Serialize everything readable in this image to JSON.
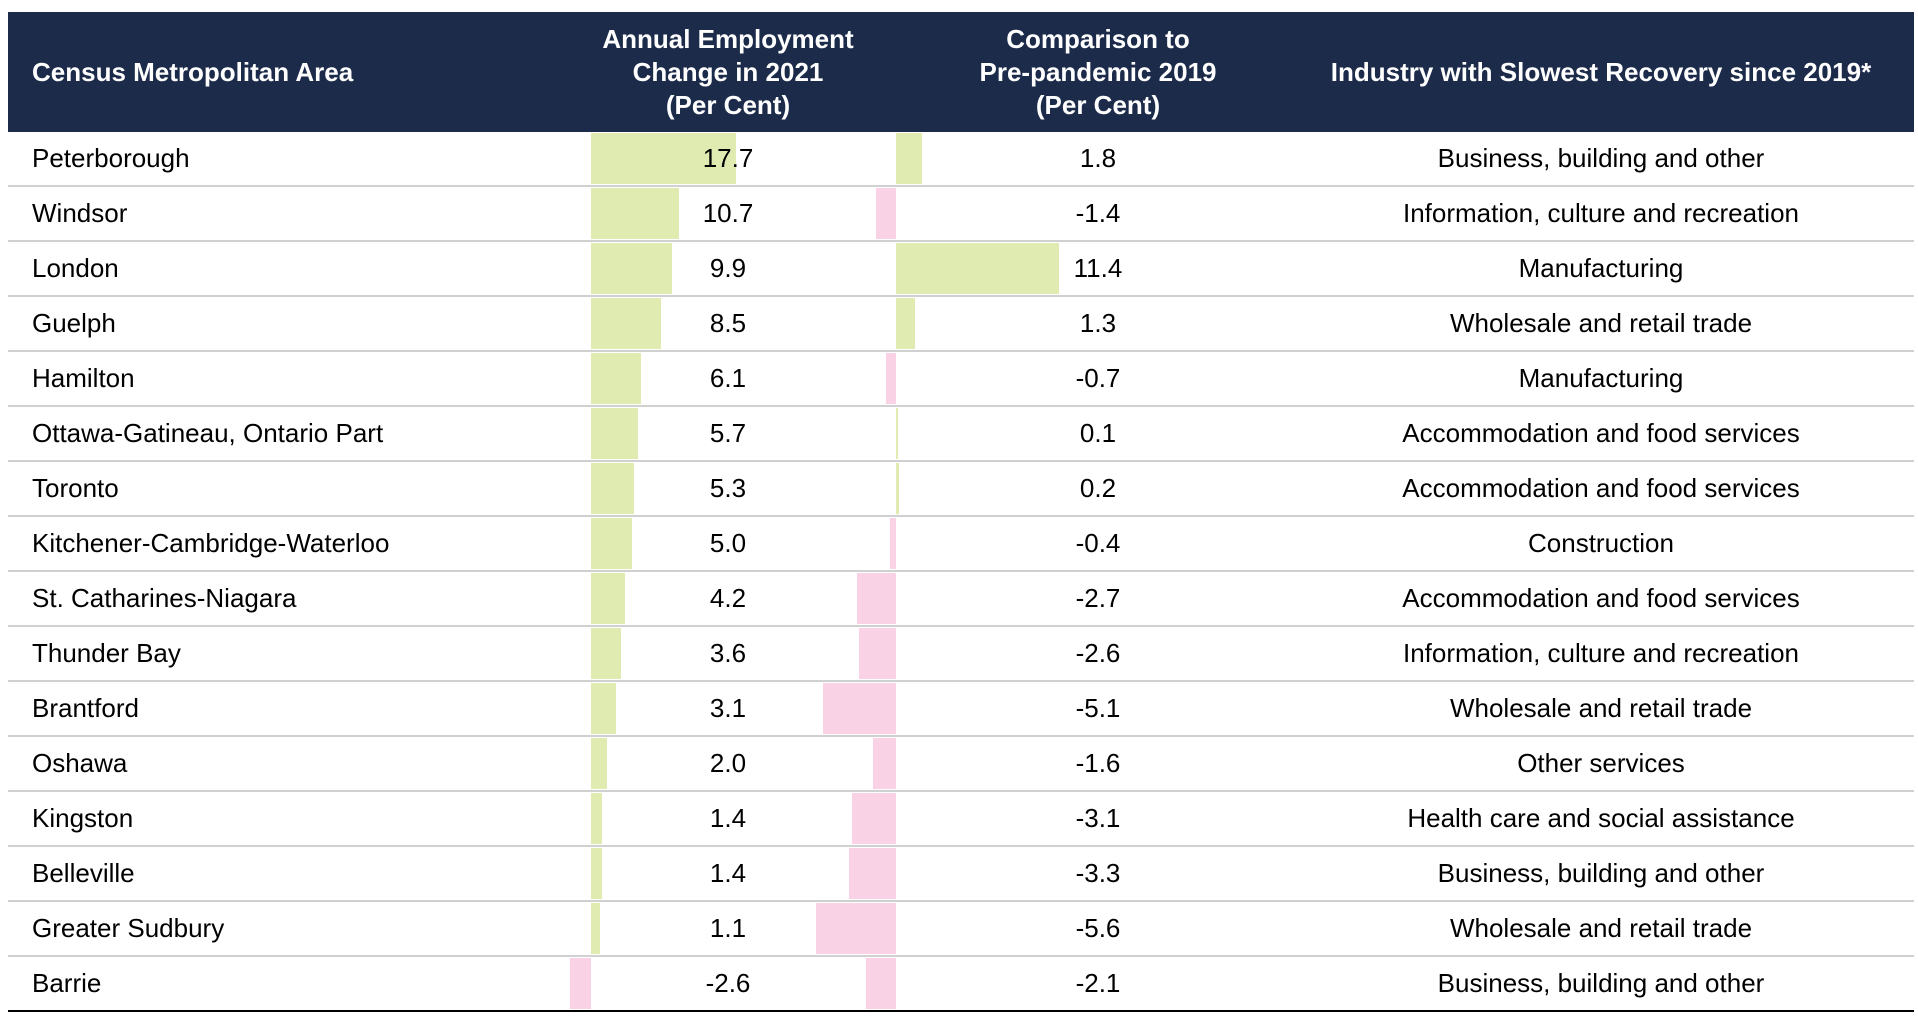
{
  "colors": {
    "header_bg": "#1c2b4a",
    "positive_bar": "#dfebb0",
    "negative_bar": "#f9d3e5"
  },
  "headers": {
    "area": "Census Metropolitan Area",
    "annual": [
      "Annual Employment",
      "Change in 2021",
      "(Per Cent)"
    ],
    "comparison": [
      "Comparison to",
      "Pre-pandemic 2019",
      "(Per Cent)"
    ],
    "industry": "Industry with Slowest Recovery since 2019*"
  },
  "chart_data": {
    "type": "table",
    "columns": [
      "Census Metropolitan Area",
      "Annual Employment Change in 2021 (Per Cent)",
      "Comparison to Pre-pandemic 2019 (Per Cent)",
      "Industry with Slowest Recovery since 2019*"
    ],
    "rows": [
      {
        "area": "Peterborough",
        "annual": "17.7",
        "comparison": "1.8",
        "industry": "Business, building and other"
      },
      {
        "area": "Windsor",
        "annual": "10.7",
        "comparison": "-1.4",
        "industry": "Information, culture and recreation"
      },
      {
        "area": "London",
        "annual": "9.9",
        "comparison": "11.4",
        "industry": "Manufacturing"
      },
      {
        "area": "Guelph",
        "annual": "8.5",
        "comparison": "1.3",
        "industry": "Wholesale and retail trade"
      },
      {
        "area": "Hamilton",
        "annual": "6.1",
        "comparison": "-0.7",
        "industry": "Manufacturing"
      },
      {
        "area": "Ottawa-Gatineau, Ontario Part",
        "annual": "5.7",
        "comparison": "0.1",
        "industry": "Accommodation and food services"
      },
      {
        "area": "Toronto",
        "annual": "5.3",
        "comparison": "0.2",
        "industry": "Accommodation and food services"
      },
      {
        "area": "Kitchener-Cambridge-Waterloo",
        "annual": "5.0",
        "comparison": "-0.4",
        "industry": "Construction"
      },
      {
        "area": "St. Catharines-Niagara",
        "annual": "4.2",
        "comparison": "-2.7",
        "industry": "Accommodation and food services"
      },
      {
        "area": "Thunder Bay",
        "annual": "3.6",
        "comparison": "-2.6",
        "industry": "Information, culture and recreation"
      },
      {
        "area": "Brantford",
        "annual": "3.1",
        "comparison": "-5.1",
        "industry": "Wholesale and retail trade"
      },
      {
        "area": "Oshawa",
        "annual": "2.0",
        "comparison": "-1.6",
        "industry": "Other services"
      },
      {
        "area": "Kingston",
        "annual": "1.4",
        "comparison": "-3.1",
        "industry": "Health care and social assistance"
      },
      {
        "area": "Belleville",
        "annual": "1.4",
        "comparison": "-3.3",
        "industry": "Business, building and other"
      },
      {
        "area": "Greater Sudbury",
        "annual": "1.1",
        "comparison": "-5.6",
        "industry": "Wholesale and retail trade"
      },
      {
        "area": "Barrie",
        "annual": "-2.6",
        "comparison": "-2.1",
        "industry": "Business, building and other"
      }
    ]
  }
}
